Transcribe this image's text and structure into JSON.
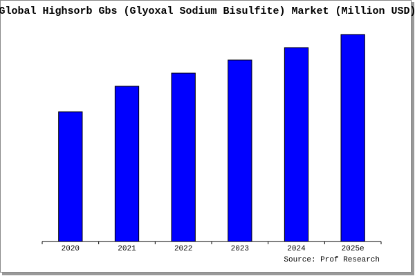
{
  "chart_data": {
    "type": "bar",
    "title": "Global Highsorb Gbs (Glyoxal Sodium Bisulfite) Market (Million USD)",
    "categories": [
      "2020",
      "2021",
      "2022",
      "2023",
      "2024",
      "2025e"
    ],
    "values": [
      188,
      225,
      244,
      263,
      281,
      300
    ],
    "color": "#0000ff",
    "ylim": [
      0,
      302
    ],
    "source": "Source: Prof Research"
  }
}
